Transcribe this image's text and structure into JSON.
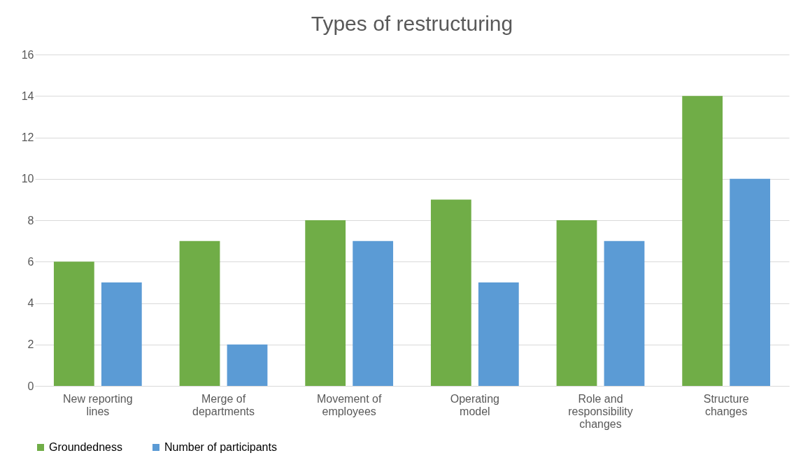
{
  "chart_data": {
    "type": "bar",
    "title": "Types of restructuring",
    "categories": [
      "New reporting lines",
      "Merge of departments",
      "Movement of employees",
      "Operating model",
      "Role and responsibility changes",
      "Structure changes"
    ],
    "series": [
      {
        "name": "Groundedness",
        "color": "#70ad47",
        "values": [
          6,
          7,
          8,
          9,
          8,
          14
        ]
      },
      {
        "name": "Number of participants",
        "color": "#5b9bd5",
        "values": [
          5,
          2,
          7,
          5,
          7,
          10
        ]
      }
    ],
    "ylim": [
      0,
      16
    ],
    "yticks": [
      0,
      2,
      4,
      6,
      8,
      10,
      12,
      14,
      16
    ],
    "grid": "y",
    "legend": "bottom"
  }
}
